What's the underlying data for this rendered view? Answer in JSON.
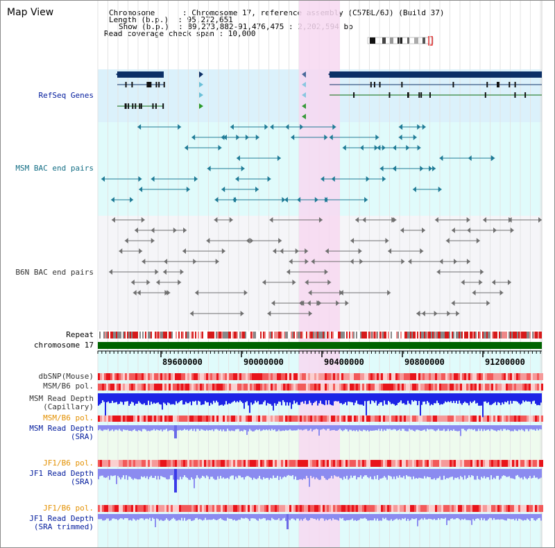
{
  "header": {
    "title": "Map View",
    "chromosome_line": "Chromosome      : Chromosome 17, reference assembly (C57BL/6J) (Build 37)",
    "length_line": "Length (b.p.)  : 95,272,651",
    "show_line": "Show (b.p.)  : 89,273,882-91,476,475 : 2,202,594 bp",
    "read_cov_line": "Read coverage check span : 10,000"
  },
  "tracks": {
    "refseq": "RefSeq Genes",
    "msm_bac": "MSM BAC end pairs",
    "b6n_bac": "B6N BAC end pairs",
    "repeat": "Repeat",
    "chromosome": "chromosome 17",
    "dbsnp": "dbSNP(Mouse)",
    "msm_b6_pol": "MSM/B6 pol.",
    "msm_read_depth_cap_1": "MSM Read Depth",
    "msm_read_depth_cap_2": "(Capillary)",
    "msm_b6_pol_2": "MSM/B6 pol.",
    "msm_read_depth_sra_1": "MSM Read Depth",
    "msm_read_depth_sra_2": "(SRA)",
    "jf1_b6_pol": "JF1/B6 pol.",
    "jf1_read_depth_sra_1": "JF1 Read Depth",
    "jf1_read_depth_sra_2": "(SRA)",
    "jf1_b6_pol_2": "JF1/B6 pol.",
    "jf1_read_depth_trim_1": "JF1 Read Depth",
    "jf1_read_depth_trim_2": "(SRA trimmed)"
  },
  "axis": {
    "ticks": [
      "89600000",
      "90000000",
      "90400000",
      "90800000",
      "91200000"
    ]
  },
  "colors": {
    "highlight": "#f7d8f1",
    "refseq_bg": "#dbf1fb",
    "msm_bg": "#e0fbfb",
    "b6n_bg": "#f5f5f8",
    "gene": "#0c2f66",
    "msm_feature": "#1f7b96",
    "b6n_feature": "#707070",
    "chrom_bar": "#006400",
    "depth_blue": "#1d24e6",
    "sra_blue": "#8b8bf0"
  }
}
